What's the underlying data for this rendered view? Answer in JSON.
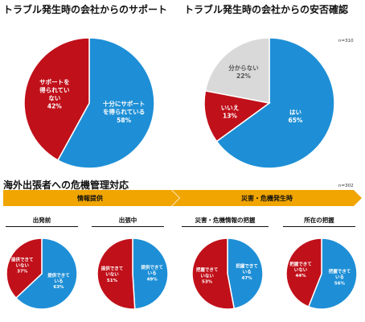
{
  "titles": {
    "support": "トラブル発生時の会社からのサポート",
    "safety": "トラブル発生時の会社からの安否確認",
    "mgmt": "海外出張者への危機管理対応"
  },
  "notes": {
    "top_n": "n=310",
    "bottom_n": "n=302"
  },
  "phases": {
    "info": "情報提供",
    "disaster": "災害・危機発生時"
  },
  "subtitles": {
    "depart": "出発前",
    "during": "出張中",
    "crisis_info": "災害・危機情報の把握",
    "location": "所在の把握"
  },
  "colors": {
    "blue": "#1e8fd6",
    "red": "#c0101a",
    "gray": "#d9d9d9",
    "arrow": "#f0a500"
  },
  "chart_data": [
    {
      "type": "pie",
      "title": "トラブル発生時の会社からのサポート",
      "slices": [
        {
          "label_lines": [
            "十分にサポート",
            "を得られている"
          ],
          "percent_text": "58%",
          "value": 58,
          "color": "#1e8fd6"
        },
        {
          "label_lines": [
            "サポートを",
            "得られてい",
            "ない"
          ],
          "percent_text": "42%",
          "value": 42,
          "color": "#c0101a"
        }
      ]
    },
    {
      "type": "pie",
      "title": "トラブル発生時の会社からの安否確認",
      "slices": [
        {
          "label_lines": [
            "はい"
          ],
          "percent_text": "65%",
          "value": 65,
          "color": "#1e8fd6"
        },
        {
          "label_lines": [
            "いいえ"
          ],
          "percent_text": "13%",
          "value": 13,
          "color": "#c0101a"
        },
        {
          "label_lines": [
            "分からない"
          ],
          "percent_text": "22%",
          "value": 22,
          "color": "#d9d9d9"
        }
      ]
    },
    {
      "type": "pie",
      "title": "出発前",
      "slices": [
        {
          "label_lines": [
            "提供できて",
            "いる"
          ],
          "percent_text": "63%",
          "value": 63,
          "color": "#1e8fd6"
        },
        {
          "label_lines": [
            "提供できて",
            "いない"
          ],
          "percent_text": "37%",
          "value": 37,
          "color": "#c0101a"
        }
      ]
    },
    {
      "type": "pie",
      "title": "出張中",
      "slices": [
        {
          "label_lines": [
            "提供できて",
            "いる"
          ],
          "percent_text": "49%",
          "value": 49,
          "color": "#1e8fd6"
        },
        {
          "label_lines": [
            "提供できて",
            "いない"
          ],
          "percent_text": "51%",
          "value": 51,
          "color": "#c0101a"
        }
      ]
    },
    {
      "type": "pie",
      "title": "災害・危機情報の把握",
      "slices": [
        {
          "label_lines": [
            "把握できて",
            "いる"
          ],
          "percent_text": "47%",
          "value": 47,
          "color": "#1e8fd6"
        },
        {
          "label_lines": [
            "把握できて",
            "いない"
          ],
          "percent_text": "53%",
          "value": 53,
          "color": "#c0101a"
        }
      ]
    },
    {
      "type": "pie",
      "title": "所在の把握",
      "slices": [
        {
          "label_lines": [
            "把握できて",
            "いる"
          ],
          "percent_text": "56%",
          "value": 56,
          "color": "#1e8fd6"
        },
        {
          "label_lines": [
            "把握できて",
            "いない"
          ],
          "percent_text": "44%",
          "value": 44,
          "color": "#c0101a"
        }
      ]
    }
  ]
}
